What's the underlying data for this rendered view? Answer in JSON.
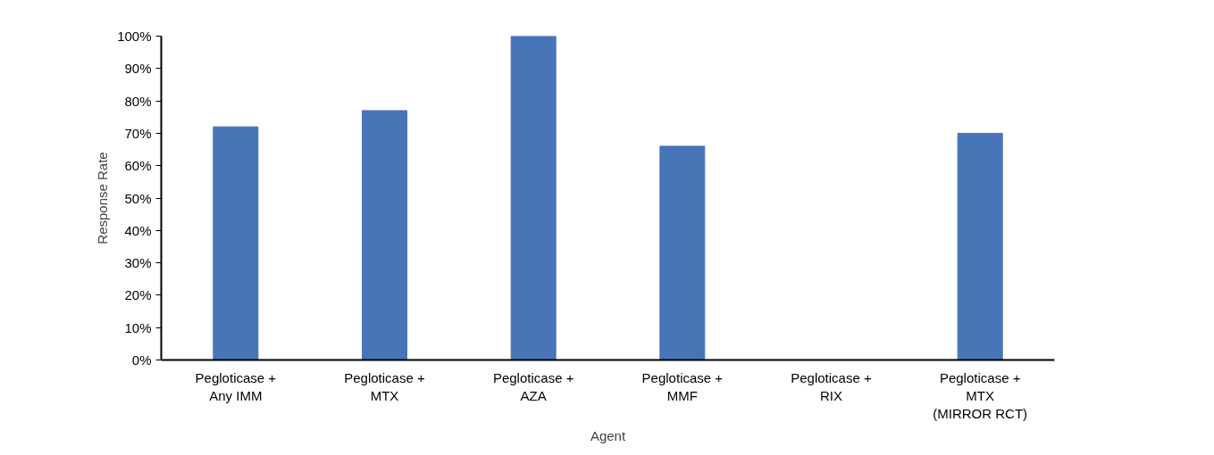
{
  "chart_data": {
    "type": "bar",
    "xlabel": "Agent",
    "ylabel": "Response Rate",
    "categories": [
      "Pegloticase +\nAny IMM",
      "Pegloticase +\nMTX",
      "Pegloticase +\nAZA",
      "Pegloticase +\nMMF",
      "Pegloticase +\nRIX",
      "Pegloticase +\nMTX\n(MIRROR RCT)"
    ],
    "values": [
      0.72,
      0.77,
      1.0,
      0.66,
      0,
      0.7
    ],
    "color": "#4874b8",
    "ylim": [
      0,
      1
    ],
    "yticks": [
      {
        "value": 0,
        "label": "0%"
      },
      {
        "value": 0.1,
        "label": "10%"
      },
      {
        "value": 0.2,
        "label": "20%"
      },
      {
        "value": 0.3,
        "label": "30%"
      },
      {
        "value": 0.4,
        "label": "40%"
      },
      {
        "value": 0.5,
        "label": "50%"
      },
      {
        "value": 0.6,
        "label": "60%"
      },
      {
        "value": 0.7,
        "label": "70%"
      },
      {
        "value": 0.8,
        "label": "80%"
      },
      {
        "value": 0.9,
        "label": "90%"
      },
      {
        "value": 1,
        "label": "100%"
      }
    ],
    "grid": false
  }
}
